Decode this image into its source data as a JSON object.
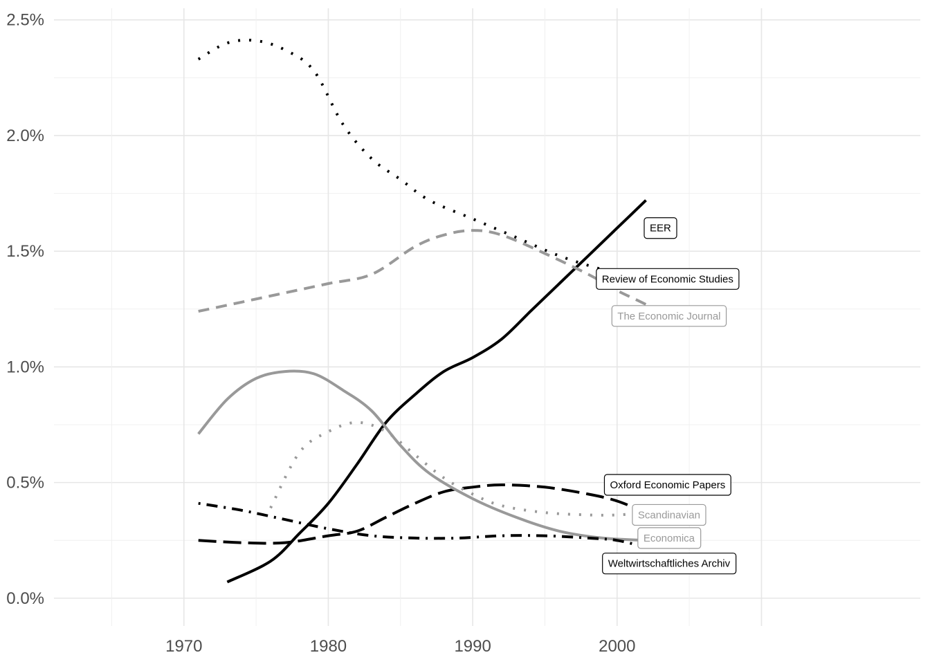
{
  "chart_data": {
    "type": "line",
    "title": "",
    "xlabel": "",
    "ylabel": "",
    "xlim": [
      1961,
      2021
    ],
    "ylim": [
      -0.0012,
      0.0255
    ],
    "x_ticks": [
      1970,
      1980,
      1990,
      2000
    ],
    "x_tick_labels": [
      "1970",
      "1980",
      "1990",
      "2000"
    ],
    "y_ticks": [
      0,
      0.005,
      0.01,
      0.015,
      0.02,
      0.025
    ],
    "y_tick_labels": [
      "0.0%",
      "0.5%",
      "1.0%",
      "1.5%",
      "2.0%",
      "2.5%"
    ],
    "grid": true,
    "legend": "direct labels at line ends",
    "series": [
      {
        "name": "EER",
        "color": "#000000",
        "dash": "solid",
        "points": [
          [
            1973,
            0.0007
          ],
          [
            1976,
            0.0016
          ],
          [
            1978,
            0.0028
          ],
          [
            1980,
            0.0041
          ],
          [
            1982,
            0.0058
          ],
          [
            1984,
            0.0076
          ],
          [
            1986,
            0.0088
          ],
          [
            1988,
            0.0098
          ],
          [
            1990,
            0.0104
          ],
          [
            1992,
            0.0112
          ],
          [
            1994,
            0.0124
          ],
          [
            1996,
            0.0136
          ],
          [
            1998,
            0.0148
          ],
          [
            2000,
            0.016
          ],
          [
            2002,
            0.0172
          ]
        ]
      },
      {
        "name": "Review of Economic Studies",
        "color": "#000000",
        "dash": "dotted",
        "points": [
          [
            1971,
            0.0233
          ],
          [
            1973,
            0.024
          ],
          [
            1975,
            0.0241
          ],
          [
            1977,
            0.0237
          ],
          [
            1979,
            0.0228
          ],
          [
            1981,
            0.0205
          ],
          [
            1983,
            0.019
          ],
          [
            1985,
            0.0181
          ],
          [
            1987,
            0.0172
          ],
          [
            1990,
            0.0164
          ],
          [
            1993,
            0.0156
          ],
          [
            1996,
            0.0148
          ],
          [
            1999,
            0.0142
          ],
          [
            2002,
            0.0137
          ]
        ]
      },
      {
        "name": "The Economic Journal",
        "color": "#999999",
        "dash": "dashed",
        "points": [
          [
            1971,
            0.0124
          ],
          [
            1974,
            0.0128
          ],
          [
            1977,
            0.0132
          ],
          [
            1980,
            0.0136
          ],
          [
            1983,
            0.014
          ],
          [
            1986,
            0.0152
          ],
          [
            1988,
            0.0157
          ],
          [
            1990,
            0.0159
          ],
          [
            1992,
            0.0157
          ],
          [
            1995,
            0.0149
          ],
          [
            1998,
            0.014
          ],
          [
            2000,
            0.0133
          ],
          [
            2001,
            0.013
          ],
          [
            2002,
            0.0127
          ]
        ]
      },
      {
        "name": "Oxford Economic Papers",
        "color": "#000000",
        "dash": "longdash",
        "points": [
          [
            1971,
            0.0025
          ],
          [
            1974,
            0.0024
          ],
          [
            1977,
            0.0024
          ],
          [
            1980,
            0.0027
          ],
          [
            1982,
            0.0029
          ],
          [
            1984,
            0.0035
          ],
          [
            1986,
            0.0041
          ],
          [
            1988,
            0.0046
          ],
          [
            1990,
            0.0048
          ],
          [
            1992,
            0.0049
          ],
          [
            1995,
            0.0048
          ],
          [
            1998,
            0.0045
          ],
          [
            2000,
            0.0042
          ],
          [
            2002,
            0.0037
          ]
        ]
      },
      {
        "name": "Scandinavian",
        "color": "#999999",
        "dash": "dotted",
        "points": [
          [
            1976,
            0.0039
          ],
          [
            1978,
            0.0063
          ],
          [
            1980,
            0.0072
          ],
          [
            1982,
            0.0076
          ],
          [
            1984,
            0.0072
          ],
          [
            1986,
            0.0062
          ],
          [
            1988,
            0.0052
          ],
          [
            1990,
            0.0045
          ],
          [
            1992,
            0.004
          ],
          [
            1995,
            0.0037
          ],
          [
            1998,
            0.0036
          ],
          [
            2000,
            0.0036
          ],
          [
            2002,
            0.0037
          ]
        ]
      },
      {
        "name": "Economica",
        "color": "#999999",
        "dash": "solid",
        "points": [
          [
            1971,
            0.0071
          ],
          [
            1973,
            0.0086
          ],
          [
            1975,
            0.0095
          ],
          [
            1977,
            0.0098
          ],
          [
            1979,
            0.0097
          ],
          [
            1981,
            0.009
          ],
          [
            1983,
            0.0081
          ],
          [
            1985,
            0.0066
          ],
          [
            1987,
            0.0054
          ],
          [
            1990,
            0.0043
          ],
          [
            1993,
            0.0035
          ],
          [
            1996,
            0.0029
          ],
          [
            1999,
            0.0026
          ],
          [
            2002,
            0.0025
          ]
        ]
      },
      {
        "name": "Weltwirtschaftliches Archiv",
        "color": "#000000",
        "dash": "dotdash",
        "points": [
          [
            1971,
            0.0041
          ],
          [
            1974,
            0.0038
          ],
          [
            1977,
            0.0034
          ],
          [
            1980,
            0.003
          ],
          [
            1983,
            0.0027
          ],
          [
            1986,
            0.0026
          ],
          [
            1989,
            0.0026
          ],
          [
            1992,
            0.0027
          ],
          [
            1995,
            0.0027
          ],
          [
            1998,
            0.0026
          ],
          [
            2000,
            0.0025
          ],
          [
            2002,
            0.0022
          ]
        ]
      }
    ],
    "labels": [
      {
        "series": "EER",
        "x": 2003,
        "y": 0.016,
        "style": "black"
      },
      {
        "series": "Review of Economic Studies",
        "x": 2003.5,
        "y": 0.0138,
        "style": "black"
      },
      {
        "series": "The Economic Journal",
        "x": 2003.6,
        "y": 0.0122,
        "style": "gray"
      },
      {
        "series": "Oxford Economic Papers",
        "x": 2003.5,
        "y": 0.0049,
        "style": "black"
      },
      {
        "series": "Scandinavian",
        "x": 2003.6,
        "y": 0.0036,
        "style": "gray"
      },
      {
        "series": "Economica",
        "x": 2003.6,
        "y": 0.0026,
        "style": "gray"
      },
      {
        "series": "Weltwirtschaftliches Archiv",
        "x": 2003.6,
        "y": 0.0015,
        "style": "black"
      }
    ]
  }
}
